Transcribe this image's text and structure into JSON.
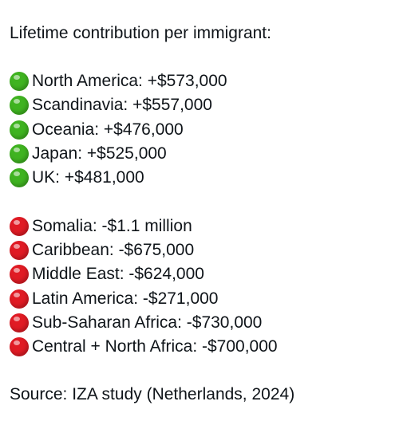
{
  "post": {
    "title": "Lifetime contribution per immigrant:",
    "positive": {
      "icon": "green-circle-icon",
      "color": "#3fb320",
      "items": [
        "North America: +$573,000",
        "Scandinavia: +$557,000",
        "Oceania: +$476,000",
        "Japan: +$525,000",
        "UK: +$481,000"
      ]
    },
    "negative": {
      "icon": "red-circle-icon",
      "color": "#e01b24",
      "items": [
        "Somalia: -$1.1 million",
        "Caribbean: -$675,000",
        "Middle East: -$624,000",
        "Latin America: -$271,000",
        "Sub-Saharan Africa: -$730,000",
        "Central + North Africa: -$700,000"
      ]
    },
    "source": "Source: IZA study (Netherlands, 2024)"
  }
}
